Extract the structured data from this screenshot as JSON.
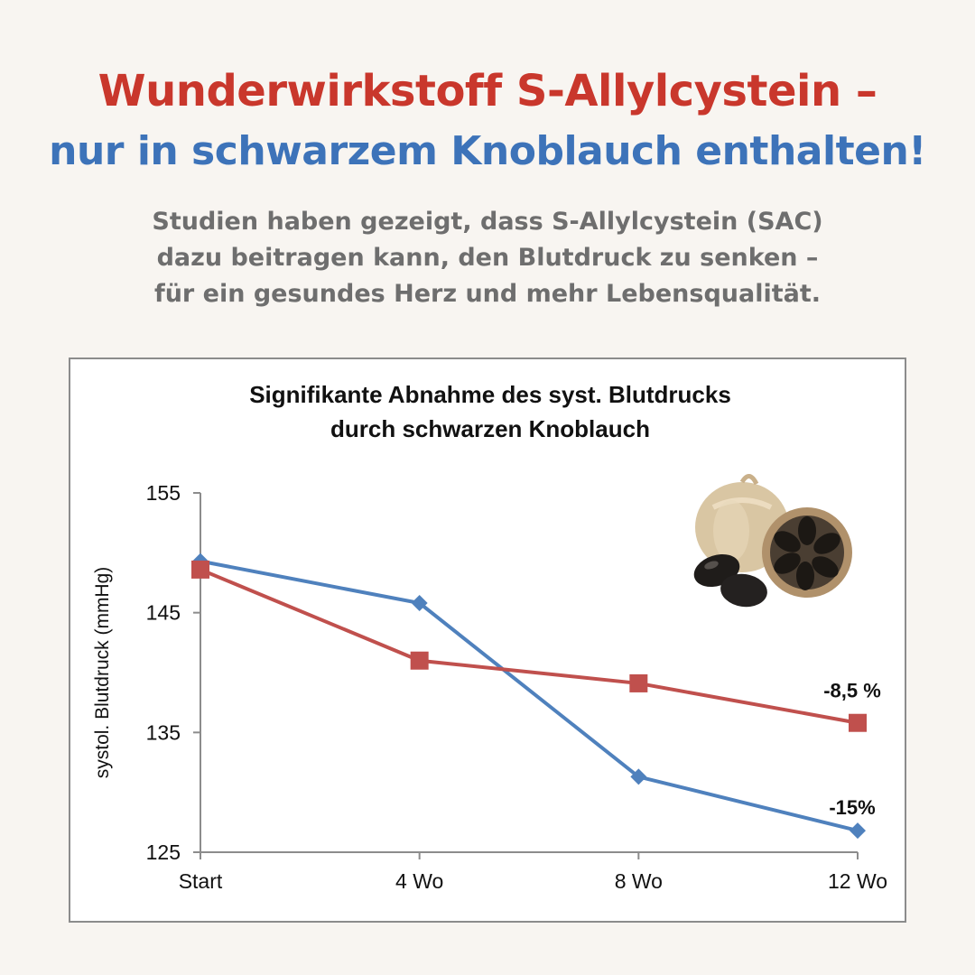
{
  "headline": {
    "line1": "Wunderwirkstoff S-Allylcystein –",
    "line2": "nur in schwarzem Knoblauch enthalten!",
    "line1_color": "#c9372c",
    "line2_color": "#3d73b9"
  },
  "subtext": {
    "line1": "Studien haben gezeigt, dass S-Allylcystein (SAC)",
    "line2": "dazu beitragen kann, den Blutdruck zu senken –",
    "line3": "für ein gesundes Herz und mehr Lebensqualität."
  },
  "chart_data": {
    "type": "line",
    "title_line1": "Signifikante Abnahme  des syst. Blutdrucks",
    "title_line2": "durch schwarzen Knoblauch",
    "xlabel": "",
    "ylabel": "systol. Blutdruck (mmHg)",
    "categories": [
      "Start",
      "4 Wo",
      "8 Wo",
      "12 Wo"
    ],
    "ylim": [
      125,
      155
    ],
    "yticks": [
      "155",
      "145",
      "135",
      "125"
    ],
    "ytick_values": [
      155,
      145,
      135,
      125
    ],
    "grid": false,
    "series": [
      {
        "color": "#4f81bd",
        "marker": "diamond",
        "values": [
          149.3,
          145.8,
          131.3,
          126.8
        ],
        "end_label": "-15%"
      },
      {
        "color": "#c0504d",
        "marker": "square",
        "values": [
          148.6,
          141.0,
          139.1,
          135.8
        ],
        "end_label": "-8,5 %"
      }
    ],
    "image": "black-garlic-photo"
  }
}
